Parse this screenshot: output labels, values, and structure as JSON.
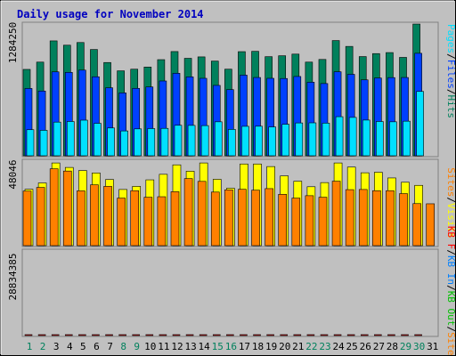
{
  "title": "Daily usage for November 2014",
  "colors": {
    "background": "#c0c0c0",
    "title": "#0000c0",
    "hits": "#00805c",
    "files": "#0040ff",
    "pages": "#00e0ff",
    "visits": "#ffff00",
    "sites": "#ff8000",
    "kbf": "#ff0000",
    "kbin": "#0080ff",
    "kbout": "#00c000",
    "weekend_label": "#00805c",
    "weekday_label": "#000080"
  },
  "chart_data": [
    {
      "type": "bar",
      "panel": "hits-files-pages",
      "ylabel_max": "1284250",
      "ymax": 1284250,
      "legend": [
        "Pages",
        "/",
        "Files",
        "/",
        "Hits"
      ],
      "categories": [
        "1",
        "2",
        "3",
        "4",
        "5",
        "6",
        "7",
        "8",
        "9",
        "10",
        "11",
        "12",
        "13",
        "14",
        "15",
        "16",
        "17",
        "18",
        "19",
        "20",
        "21",
        "22",
        "23",
        "24",
        "25",
        "26",
        "27",
        "28",
        "29",
        "30",
        "31"
      ],
      "weekend_days": [
        "1",
        "2",
        "8",
        "9",
        "15",
        "16",
        "22",
        "23",
        "29",
        "30"
      ],
      "series": [
        {
          "name": "Hits",
          "values": [
            842000,
            913000,
            1120000,
            1078000,
            1104000,
            1036000,
            909000,
            828000,
            844000,
            865000,
            937000,
            1016000,
            950000,
            964000,
            923000,
            844000,
            1015000,
            1018000,
            966000,
            975000,
            991000,
            913000,
            939000,
            1123000,
            1066000,
            967000,
            996000,
            1006000,
            959000,
            1284000,
            0
          ]
        },
        {
          "name": "Files",
          "values": [
            656000,
            631000,
            818000,
            813000,
            835000,
            770000,
            663000,
            613000,
            657000,
            671000,
            729000,
            804000,
            769000,
            755000,
            686000,
            645000,
            786000,
            763000,
            755000,
            753000,
            773000,
            717000,
            704000,
            819000,
            794000,
            740000,
            758000,
            762000,
            763000,
            999000,
            0
          ]
        },
        {
          "name": "Pages",
          "values": [
            254000,
            248000,
            328000,
            334000,
            347000,
            316000,
            271000,
            242000,
            262000,
            265000,
            267000,
            297000,
            296000,
            294000,
            331000,
            257000,
            287000,
            288000,
            281000,
            307000,
            320000,
            321000,
            318000,
            381000,
            374000,
            348000,
            334000,
            331000,
            337000,
            627000,
            0
          ]
        }
      ]
    },
    {
      "type": "bar",
      "panel": "visits-sites",
      "ylabel_max": "48046",
      "ymax": 48046,
      "legend": [
        "Sites",
        "/",
        "Visits"
      ],
      "categories": [
        "1",
        "2",
        "3",
        "4",
        "5",
        "6",
        "7",
        "8",
        "9",
        "10",
        "11",
        "12",
        "13",
        "14",
        "15",
        "16",
        "17",
        "18",
        "19",
        "20",
        "21",
        "22",
        "23",
        "24",
        "25",
        "26",
        "27",
        "28",
        "29",
        "30",
        "31"
      ],
      "series": [
        {
          "name": "Visits",
          "values": [
            32700,
            36400,
            48000,
            45400,
            43600,
            42200,
            38400,
            32600,
            34400,
            38200,
            41400,
            46900,
            43200,
            48000,
            38500,
            33300,
            47400,
            47400,
            45900,
            40500,
            37400,
            34200,
            36600,
            48000,
            45600,
            42300,
            42600,
            39300,
            36800,
            35000,
            0
          ]
        },
        {
          "name": "Sites",
          "values": [
            31700,
            33800,
            44600,
            43300,
            31800,
            35300,
            34400,
            27600,
            31900,
            28100,
            28400,
            31300,
            38900,
            37300,
            31100,
            32400,
            32700,
            32200,
            33100,
            29800,
            27600,
            29000,
            28100,
            37400,
            32500,
            32600,
            31900,
            31900,
            30200,
            24400,
            24300
          ]
        }
      ]
    },
    {
      "type": "bar",
      "panel": "kbytes",
      "ylabel_max": "28834385",
      "ymax": 28834385,
      "legend": [
        "KB F",
        "/",
        "KB In",
        "/",
        "KB Out",
        "/",
        "Sites"
      ],
      "categories": [
        "1",
        "2",
        "3",
        "4",
        "5",
        "6",
        "7",
        "8",
        "9",
        "10",
        "11",
        "12",
        "13",
        "14",
        "15",
        "16",
        "17",
        "18",
        "19",
        "20",
        "21",
        "22",
        "23",
        "24",
        "25",
        "26",
        "27",
        "28",
        "29",
        "30",
        "31"
      ],
      "series": [
        {
          "name": "KB F",
          "values": [
            20200,
            20500,
            22700,
            22200,
            25500,
            24100,
            22700,
            19800,
            22500,
            25200,
            25200,
            25900,
            24600,
            23700,
            22700,
            25700,
            25700,
            24300,
            24700,
            25000,
            20500,
            20500,
            23900,
            23900,
            23900,
            22000,
            22000,
            22200,
            22600,
            28800,
            0
          ]
        }
      ]
    }
  ]
}
